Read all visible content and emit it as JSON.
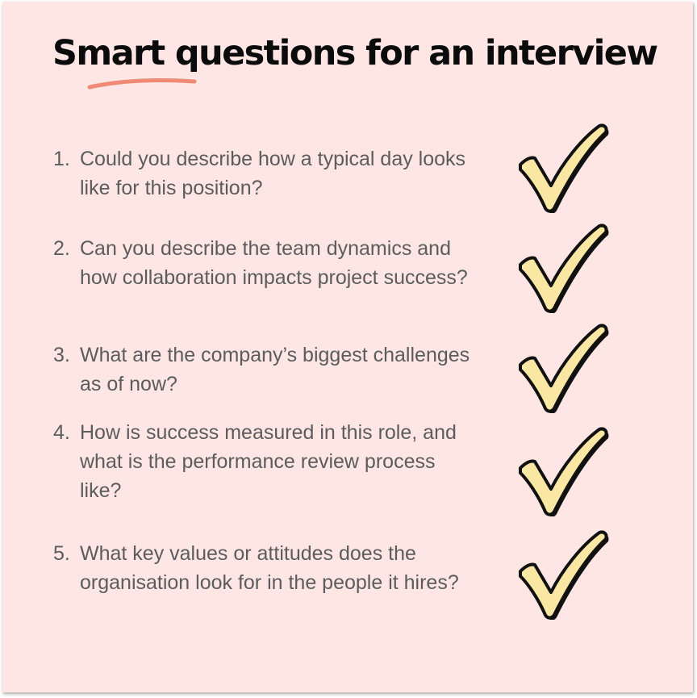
{
  "title": "Smart questions for an interview",
  "colors": {
    "background": "#fde6e3",
    "title_text": "#0b0b0b",
    "body_text": "#5c5c5c",
    "underline_accent": "#f08a77",
    "check_fill": "#fbe7a4",
    "check_outline": "#111111"
  },
  "questions": [
    {
      "number": "1.",
      "text": "Could you describe how a typical day looks like for this position?",
      "icon": "checkmark-icon"
    },
    {
      "number": "2.",
      "text": "Can you describe the team dynamics and how collaboration impacts project success?",
      "icon": "checkmark-icon"
    },
    {
      "number": "3.",
      "text": "What are the company’s biggest challenges as of now?",
      "icon": "checkmark-icon"
    },
    {
      "number": "4.",
      "text": "How is success measured in this role, and what is the performance review process like?",
      "icon": "checkmark-icon"
    },
    {
      "number": "5.",
      "text": "What key values or attitudes does the organisation look for in the people it hires?",
      "icon": "checkmark-icon"
    }
  ]
}
